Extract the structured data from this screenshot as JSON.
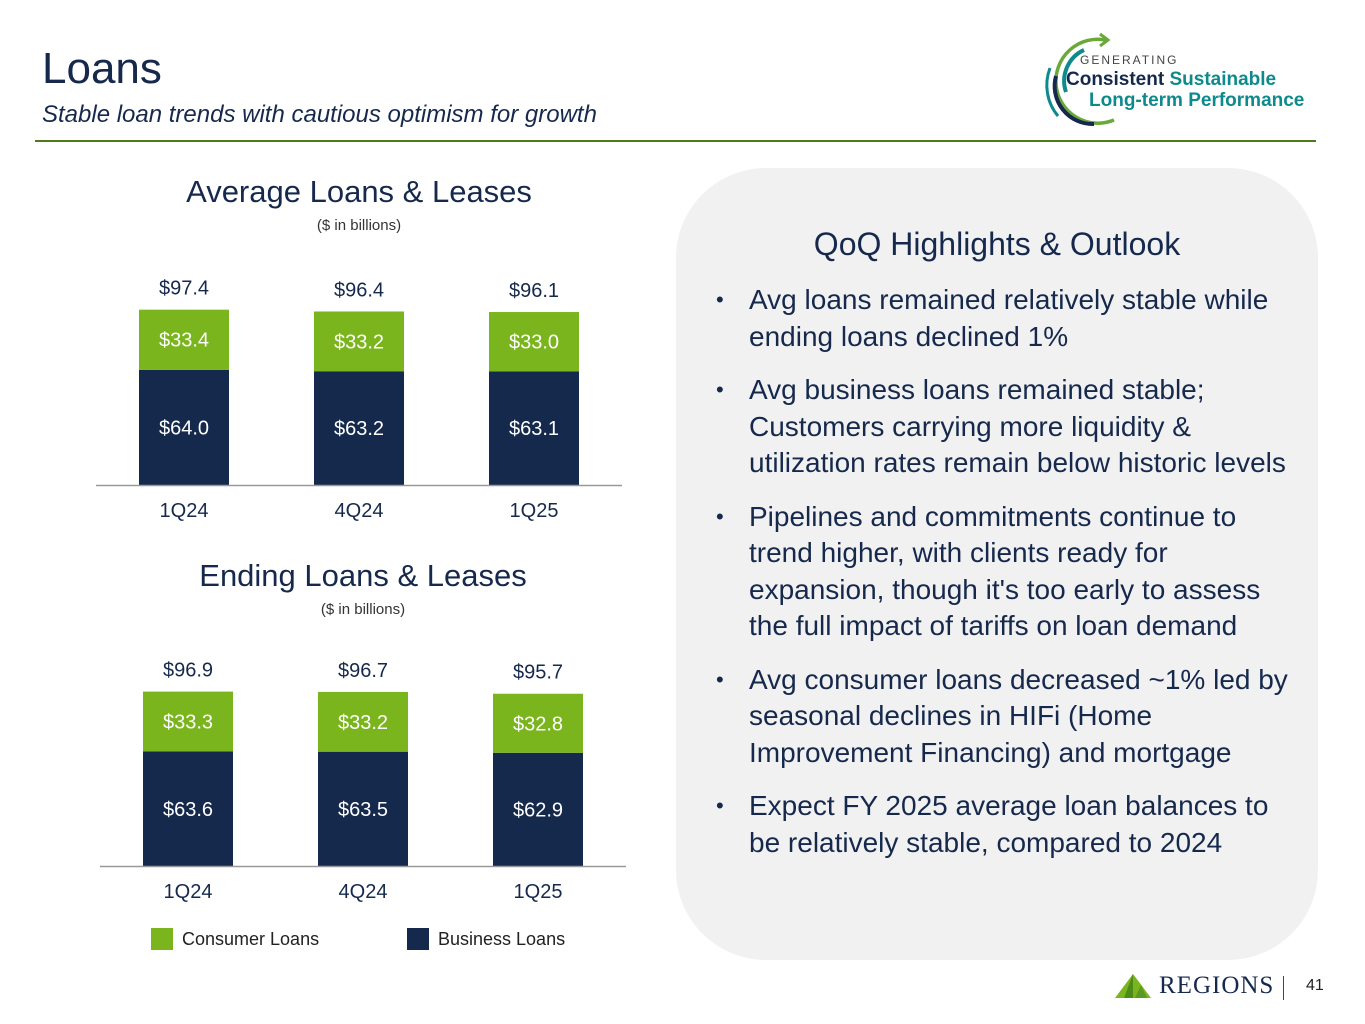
{
  "header": {
    "title": "Loans",
    "subtitle": "Stable loan trends with cautious optimism for growth"
  },
  "brand_logo": {
    "generating": "GENERATING",
    "line1_a": "Consistent",
    "line1_b": "Sustainable",
    "line2": "Long-term Performance"
  },
  "colors": {
    "consumer": "#7ab51d",
    "business": "#15294d",
    "rule": "#4e7a1c",
    "panel": "#f1f1f1"
  },
  "chart_data": [
    {
      "type": "bar",
      "stacked": true,
      "title": "Average Loans & Leases",
      "subtitle": "($ in billions)",
      "categories": [
        "1Q24",
        "4Q24",
        "1Q25"
      ],
      "series": [
        {
          "name": "Business Loans",
          "values": [
            64.0,
            63.2,
            63.1
          ],
          "labels": [
            "$64.0",
            "$63.2",
            "$63.1"
          ]
        },
        {
          "name": "Consumer Loans",
          "values": [
            33.4,
            33.2,
            33.0
          ],
          "labels": [
            "$33.4",
            "$33.2",
            "$33.0"
          ]
        }
      ],
      "totals": [
        97.4,
        96.4,
        96.1
      ],
      "total_labels": [
        "$97.4",
        "$96.4",
        "$96.1"
      ],
      "ylim": [
        0,
        100
      ]
    },
    {
      "type": "bar",
      "stacked": true,
      "title": "Ending Loans & Leases",
      "subtitle": "($ in billions)",
      "categories": [
        "1Q24",
        "4Q24",
        "1Q25"
      ],
      "series": [
        {
          "name": "Business Loans",
          "values": [
            63.6,
            63.5,
            62.9
          ],
          "labels": [
            "$63.6",
            "$63.5",
            "$62.9"
          ]
        },
        {
          "name": "Consumer Loans",
          "values": [
            33.3,
            33.2,
            32.8
          ],
          "labels": [
            "$33.3",
            "$33.2",
            "$32.8"
          ]
        }
      ],
      "totals": [
        96.9,
        96.7,
        95.7
      ],
      "total_labels": [
        "$96.9",
        "$96.7",
        "$95.7"
      ],
      "ylim": [
        0,
        100
      ]
    }
  ],
  "legend": {
    "consumer": "Consumer Loans",
    "business": "Business Loans"
  },
  "highlights": {
    "title": "QoQ Highlights & Outlook",
    "bullets": [
      "Avg loans remained relatively stable while ending loans declined 1%",
      "Avg business loans remained stable; Customers carrying more liquidity & utilization rates remain below historic levels",
      "Pipelines and commitments continue to trend higher, with clients ready for expansion, though it's too early to assess the full impact of tariffs on loan demand",
      "Avg consumer loans decreased ~1% led by seasonal declines in HIFi (Home Improvement Financing) and mortgage",
      "Expect FY 2025 average loan balances to be relatively stable,  compared to 2024"
    ]
  },
  "footer": {
    "brand": "REGIONS",
    "page_number": "41"
  }
}
